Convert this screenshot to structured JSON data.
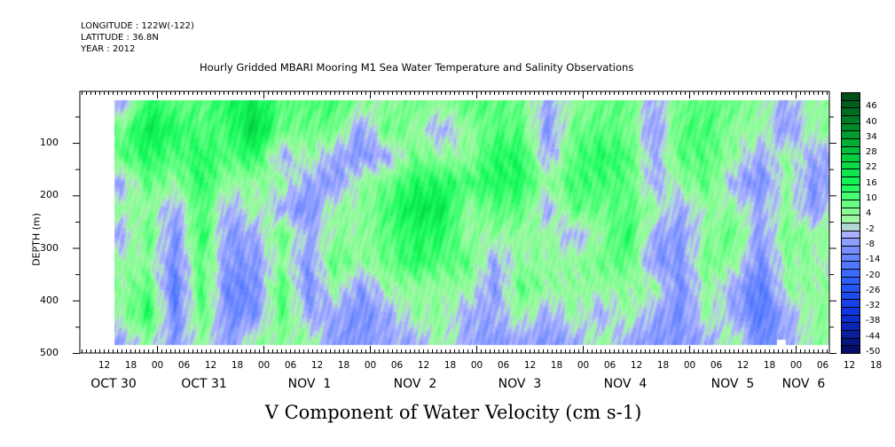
{
  "header": {
    "longitude": "LONGITUDE : 122W(-122)",
    "latitude": "LATITUDE : 36.8N",
    "year": "YEAR : 2012"
  },
  "chart_data": {
    "type": "heatmap",
    "title": "Hourly Gridded MBARI Mooring M1 Sea Water Temperature and Salinity Observations",
    "xlabel": "V Component of Water Velocity (cm s-1)",
    "ylabel": "DEPTH (m)",
    "ylim": [
      500,
      0
    ],
    "y_ticks": [
      100,
      200,
      300,
      400,
      500
    ],
    "x_hour_ticks": [
      "12",
      "18",
      "00",
      "06",
      "12",
      "18",
      "00",
      "06",
      "12",
      "18",
      "00",
      "06",
      "12",
      "18",
      "00",
      "06",
      "12",
      "18",
      "00",
      "06",
      "12",
      "18",
      "00",
      "06",
      "12",
      "18",
      "00",
      "06",
      "12",
      "18",
      "00",
      "06"
    ],
    "x_day_labels": [
      "OCT 30",
      "OCT 31",
      "NOV  1",
      "NOV  2",
      "NOV  3",
      "NOV  4",
      "NOV  5",
      "NOV  6"
    ],
    "colorbar": {
      "min": -50,
      "max": 52,
      "step": 3,
      "labels": [
        "46",
        "40",
        "34",
        "28",
        "22",
        "16",
        "10",
        "4",
        "-2",
        "-8",
        "-14",
        "-20",
        "-26",
        "-32",
        "-38",
        "-44",
        "-50"
      ]
    },
    "time_hours_from_oct30_00": [
      -8,
      -2,
      4,
      10,
      16,
      22,
      28,
      34,
      40,
      46,
      52,
      58,
      64,
      70,
      76,
      82,
      88,
      94,
      100,
      106,
      112,
      118,
      124,
      130,
      136,
      142,
      148,
      154
    ],
    "depths": [
      25,
      75,
      125,
      175,
      225,
      275,
      325,
      375,
      425,
      475
    ],
    "values": [
      [
        -5,
        8,
        10,
        -5,
        4,
        -5,
        4,
        4,
        4,
        -5
      ],
      [
        15,
        20,
        15,
        10,
        4,
        10,
        4,
        10,
        15,
        4
      ],
      [
        10,
        15,
        10,
        4,
        -5,
        -10,
        -10,
        -15,
        -12,
        -8
      ],
      [
        10,
        10,
        15,
        15,
        12,
        15,
        10,
        12,
        10,
        4
      ],
      [
        15,
        12,
        10,
        4,
        -5,
        -8,
        -8,
        -12,
        -10,
        -8
      ],
      [
        20,
        25,
        15,
        4,
        4,
        -5,
        -8,
        -10,
        -10,
        4
      ],
      [
        10,
        8,
        -5,
        4,
        -5,
        10,
        4,
        12,
        10,
        4
      ],
      [
        10,
        8,
        4,
        -5,
        -10,
        -5,
        -8,
        -10,
        -5,
        4
      ],
      [
        12,
        8,
        -5,
        -8,
        4,
        4,
        10,
        4,
        -5,
        -8
      ],
      [
        4,
        -8,
        -8,
        4,
        4,
        4,
        4,
        -8,
        -10,
        -8
      ],
      [
        4,
        10,
        -5,
        8,
        12,
        10,
        8,
        4,
        -5,
        -5
      ],
      [
        8,
        4,
        8,
        15,
        20,
        15,
        15,
        4,
        4,
        -5
      ],
      [
        4,
        -5,
        4,
        15,
        20,
        15,
        10,
        4,
        4,
        4
      ],
      [
        10,
        4,
        4,
        12,
        4,
        4,
        10,
        4,
        -5,
        -5
      ],
      [
        10,
        10,
        15,
        15,
        10,
        4,
        -5,
        -8,
        -5,
        -8
      ],
      [
        8,
        10,
        15,
        15,
        10,
        4,
        4,
        10,
        4,
        -5
      ],
      [
        -5,
        -8,
        -5,
        4,
        -5,
        4,
        4,
        4,
        -5,
        -8
      ],
      [
        4,
        8,
        10,
        12,
        10,
        -5,
        4,
        4,
        4,
        -5
      ],
      [
        8,
        10,
        15,
        12,
        8,
        4,
        8,
        4,
        -5,
        4
      ],
      [
        10,
        8,
        12,
        10,
        10,
        15,
        10,
        4,
        4,
        -5
      ],
      [
        -5,
        -8,
        -5,
        -5,
        4,
        -5,
        -8,
        4,
        -5,
        -8
      ],
      [
        8,
        10,
        10,
        4,
        -5,
        -8,
        -8,
        -10,
        -10,
        -8
      ],
      [
        10,
        12,
        10,
        10,
        4,
        4,
        8,
        4,
        4,
        -5
      ],
      [
        8,
        4,
        4,
        -5,
        4,
        10,
        4,
        -5,
        -5,
        4
      ],
      [
        4,
        4,
        -5,
        -10,
        -5,
        -8,
        -10,
        -15,
        -15,
        -12
      ],
      [
        -5,
        -8,
        4,
        4,
        4,
        8,
        4,
        4,
        -5,
        -5
      ],
      [
        4,
        4,
        -5,
        -8,
        -8,
        4,
        4,
        4,
        4,
        4
      ],
      [
        4,
        4,
        -5,
        -5,
        4,
        4,
        -5,
        4,
        4,
        4
      ]
    ]
  }
}
